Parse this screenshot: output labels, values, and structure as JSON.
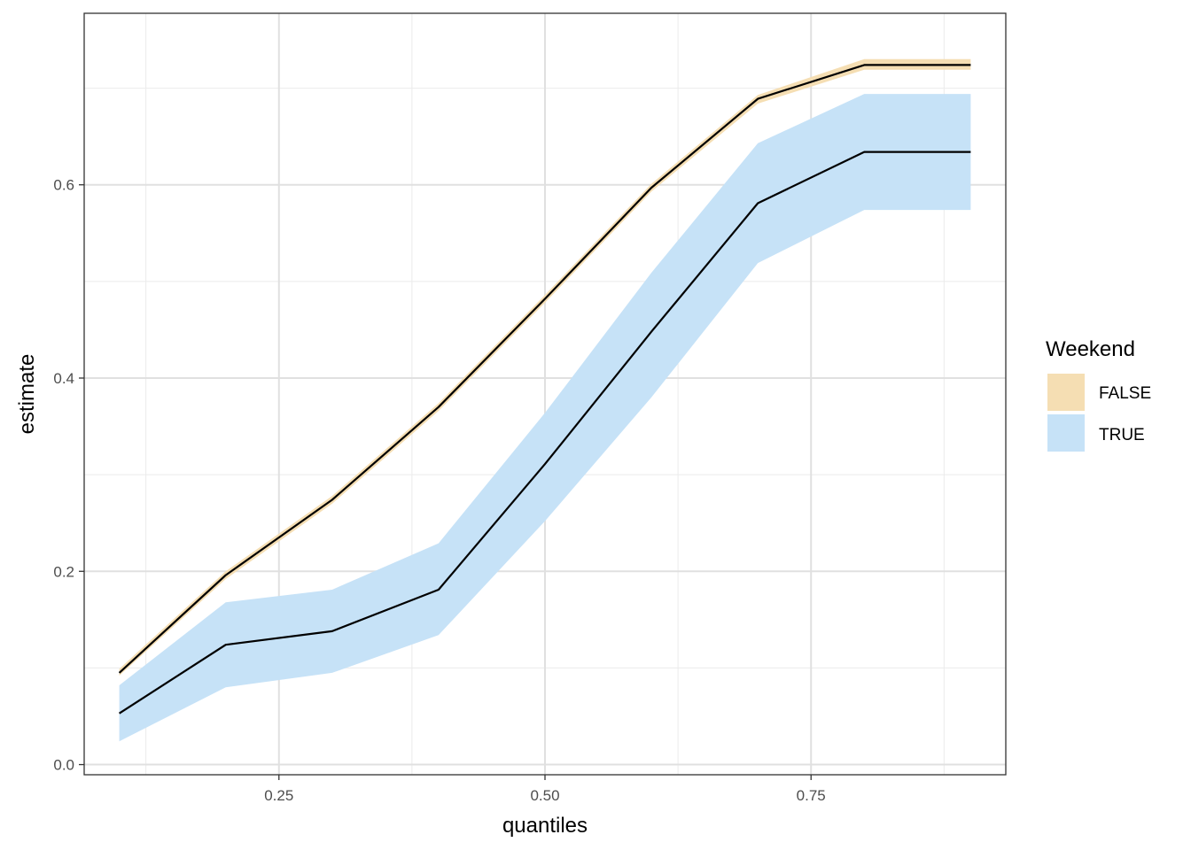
{
  "chart_data": {
    "type": "area",
    "xlabel": "quantiles",
    "ylabel": "estimate",
    "xlim": [
      0.067,
      0.933
    ],
    "ylim": [
      -0.0105,
      0.7775
    ],
    "x_ticks": [
      0.25,
      0.5,
      0.75
    ],
    "x_tick_labels": [
      "0.25",
      "0.50",
      "0.75"
    ],
    "y_ticks": [
      0.0,
      0.2,
      0.4,
      0.6
    ],
    "y_tick_labels": [
      "0.0",
      "0.2",
      "0.4",
      "0.6"
    ],
    "grid": true,
    "legend": {
      "title": "Weekend",
      "position": "right"
    },
    "x": [
      0.1,
      0.2,
      0.3,
      0.4,
      0.5,
      0.6,
      0.7,
      0.8,
      0.9
    ],
    "series": [
      {
        "name": "FALSE",
        "color": "#F5DEB3",
        "line_color": "#000000",
        "estimate": [
          0.095,
          0.196,
          0.274,
          0.37,
          0.482,
          0.597,
          0.689,
          0.724,
          0.724
        ],
        "lower": [
          0.092,
          0.192,
          0.27,
          0.366,
          0.478,
          0.593,
          0.684,
          0.719,
          0.719
        ],
        "upper": [
          0.099,
          0.2,
          0.278,
          0.374,
          0.486,
          0.601,
          0.693,
          0.73,
          0.73
        ]
      },
      {
        "name": "TRUE",
        "color": "#C6E2F7",
        "line_color": "#000000",
        "estimate": [
          0.053,
          0.124,
          0.138,
          0.181,
          0.311,
          0.448,
          0.581,
          0.634,
          0.634
        ],
        "lower": [
          0.024,
          0.08,
          0.095,
          0.134,
          0.252,
          0.38,
          0.519,
          0.574,
          0.574
        ],
        "upper": [
          0.082,
          0.168,
          0.181,
          0.229,
          0.364,
          0.509,
          0.643,
          0.694,
          0.694
        ]
      }
    ]
  }
}
